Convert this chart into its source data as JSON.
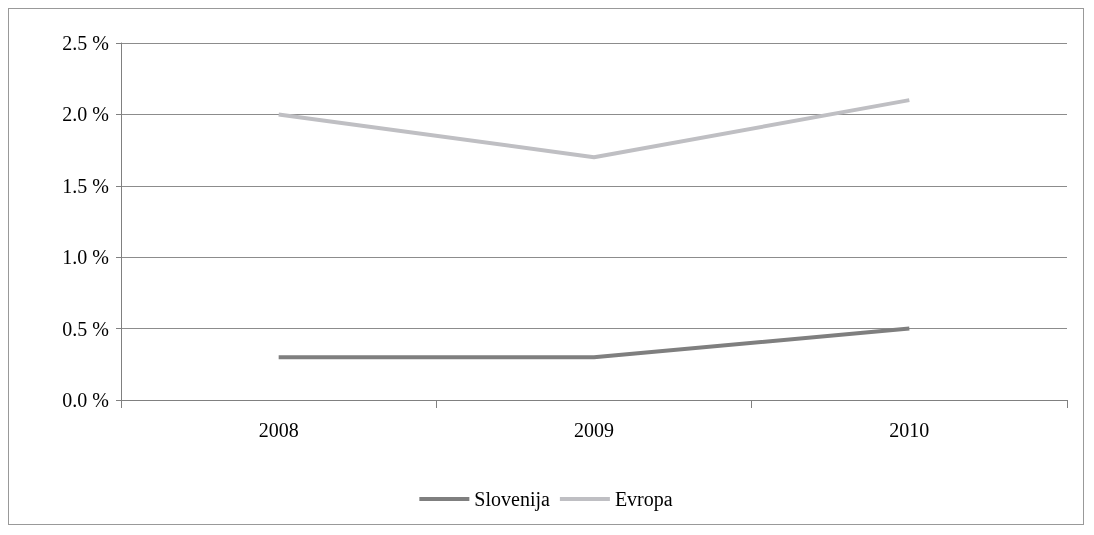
{
  "chart_data": {
    "type": "line",
    "categories": [
      "2008",
      "2009",
      "2010"
    ],
    "series": [
      {
        "name": "Slovenija",
        "color": "#7f7f7f",
        "values": [
          0.3,
          0.3,
          0.5
        ]
      },
      {
        "name": "Evropa",
        "color": "#bfbfc3",
        "values": [
          2.0,
          1.7,
          2.1
        ]
      }
    ],
    "ylim": [
      0,
      2.5
    ],
    "yticks": [
      {
        "value": 0,
        "label": "0.0 %"
      },
      {
        "value": 0.5,
        "label": "0.5 %"
      },
      {
        "value": 1,
        "label": "1.0 %"
      },
      {
        "value": 1.5,
        "label": "1.5 %"
      },
      {
        "value": 2,
        "label": "2.0 %"
      },
      {
        "value": 2.5,
        "label": "2.5 %"
      }
    ],
    "grid": "y",
    "legend": "bottom",
    "marker": "none",
    "line_style": "solid"
  }
}
